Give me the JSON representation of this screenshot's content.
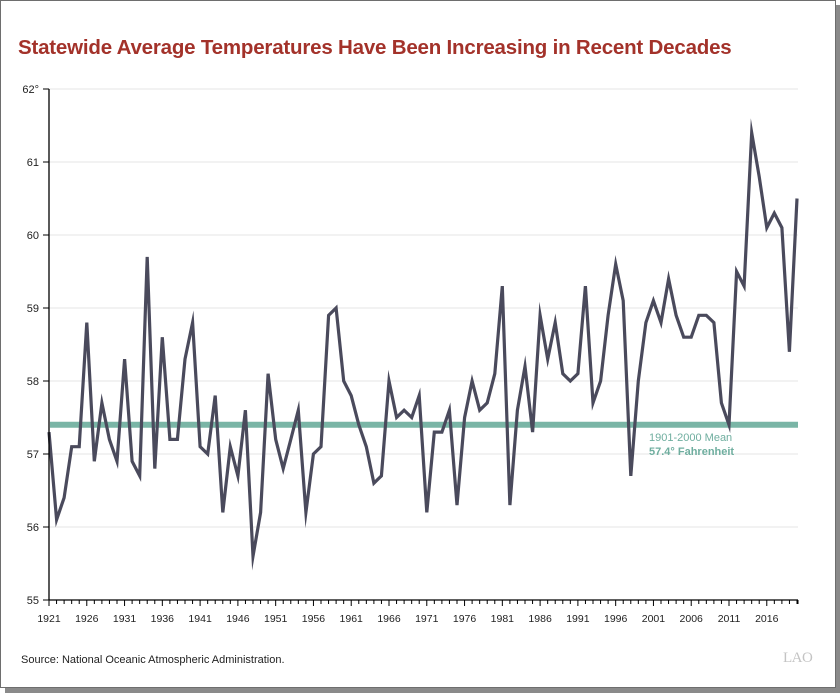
{
  "title": "Statewide Average Temperatures Have Been Increasing in Recent Decades",
  "source": "Source: National Oceanic Atmospheric Administration.",
  "logo": "LAO",
  "colors": {
    "title": "#a3322a",
    "series_line": "#4a4a5c",
    "mean_line": "#7ab5a6",
    "gridline": "#e6e6e6"
  },
  "chart_data": {
    "type": "line",
    "title": "Statewide Average Temperatures Have Been Increasing in Recent Decades",
    "xlabel": "",
    "ylabel": "",
    "ylim": [
      55,
      62
    ],
    "xlim": [
      1921,
      2020
    ],
    "y_ticks": [
      55,
      56,
      57,
      58,
      59,
      60,
      61,
      62
    ],
    "y_tick_labels": [
      "55",
      "56",
      "57",
      "58",
      "59",
      "60",
      "61",
      "62°"
    ],
    "x_tick_labels": [
      "1921",
      "1926",
      "1931",
      "1936",
      "1941",
      "1946",
      "1951",
      "1956",
      "1961",
      "1966",
      "1971",
      "1976",
      "1981",
      "1986",
      "1991",
      "1996",
      "2001",
      "2006",
      "2011",
      "2016"
    ],
    "grid": true,
    "series": [
      {
        "name": "Statewide Average Temperature",
        "x_start": 1921,
        "values": [
          57.3,
          56.1,
          56.4,
          57.1,
          57.1,
          58.8,
          56.9,
          57.7,
          57.2,
          56.9,
          58.3,
          56.9,
          56.7,
          59.7,
          56.8,
          58.6,
          57.2,
          57.2,
          58.3,
          58.8,
          57.1,
          57.0,
          57.8,
          56.2,
          57.1,
          56.7,
          57.6,
          55.6,
          56.2,
          58.1,
          57.2,
          56.8,
          57.2,
          57.6,
          56.2,
          57.0,
          57.1,
          58.9,
          59.0,
          58.0,
          57.8,
          57.4,
          57.1,
          56.6,
          56.7,
          58.0,
          57.5,
          57.6,
          57.5,
          57.8,
          56.2,
          57.3,
          57.3,
          57.6,
          56.3,
          57.5,
          58.0,
          57.6,
          57.7,
          58.1,
          59.3,
          56.3,
          57.6,
          58.2,
          57.3,
          58.9,
          58.3,
          58.8,
          58.1,
          58.0,
          58.1,
          59.3,
          57.7,
          58.0,
          58.9,
          59.6,
          59.1,
          56.7,
          58.0,
          58.8,
          59.1,
          58.8,
          59.4,
          58.9,
          58.6,
          58.6,
          58.9,
          58.9,
          58.8,
          57.7,
          57.4,
          59.5,
          59.3,
          61.4,
          60.8,
          60.1,
          60.3,
          60.1,
          58.4,
          60.5
        ]
      }
    ],
    "reference_line": {
      "value": 57.4,
      "label_line1": "1901-2000 Mean",
      "label_line2": "57.4° Fahrenheit"
    }
  }
}
